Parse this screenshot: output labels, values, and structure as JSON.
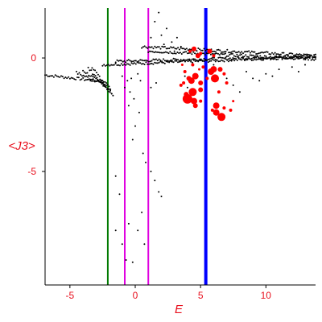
{
  "chart_data": {
    "type": "scatter",
    "xlabel": "E",
    "ylabel": "<J3>",
    "xlim": [
      -6.9,
      13.8
    ],
    "ylim": [
      -10,
      2.2
    ],
    "x_ticks": [
      -5,
      0,
      5,
      10
    ],
    "y_ticks": [
      0,
      -5
    ],
    "grid": false,
    "legend": "none",
    "vertical_lines": [
      {
        "x": -2.1,
        "color": "#007a00"
      },
      {
        "x": -0.8,
        "color": "#e000e0"
      },
      {
        "x": 1.0,
        "color": "#e000e0"
      },
      {
        "x": 5.4,
        "color": "#0000ff"
      }
    ],
    "series": [
      {
        "color": "#000000",
        "marker": "dot",
        "bands": [
          {
            "x0": -6.9,
            "x1": -2.2,
            "y0": -0.75,
            "y1": -1.05
          },
          {
            "x0": -4.5,
            "x1": -2.0,
            "y0": -0.65,
            "y1": -1.25
          },
          {
            "x0": -4.0,
            "x1": -1.9,
            "y0": -0.55,
            "y1": -1.4
          },
          {
            "x0": -3.6,
            "x1": -1.8,
            "y0": -0.45,
            "y1": -1.55
          },
          {
            "x0": -3.3,
            "x1": -1.7,
            "y0": -0.38,
            "y1": -1.7
          },
          {
            "x0": -2.5,
            "x1": 13.8,
            "y0": -0.3,
            "y1": 0.05
          },
          {
            "x0": -1.5,
            "x1": 13.8,
            "y0": -0.15,
            "y1": 0.08
          },
          {
            "x0": 0.5,
            "x1": 13.8,
            "y0": 0.5,
            "y1": 0.1
          },
          {
            "x0": 1.0,
            "x1": 13.8,
            "y0": 0.3,
            "y1": -0.05
          }
        ],
        "scattered": [
          [
            -1.0,
            -0.8
          ],
          [
            -0.6,
            -1.0
          ],
          [
            -0.3,
            -0.9
          ],
          [
            -0.8,
            -1.3
          ],
          [
            -0.4,
            -1.5
          ],
          [
            0.2,
            -0.7
          ],
          [
            0.4,
            -1.0
          ],
          [
            -0.1,
            -1.8
          ],
          [
            -0.5,
            -2.1
          ],
          [
            0.3,
            -2.4
          ],
          [
            0.0,
            -3.0
          ],
          [
            -0.2,
            -3.6
          ],
          [
            0.6,
            -4.2
          ],
          [
            0.8,
            -4.6
          ],
          [
            1.2,
            -5.0
          ],
          [
            1.5,
            -5.4
          ],
          [
            1.8,
            -5.9
          ],
          [
            2.0,
            -6.1
          ],
          [
            0.5,
            -6.8
          ],
          [
            -0.5,
            -7.3
          ],
          [
            0.2,
            -7.6
          ],
          [
            0.7,
            -8.2
          ],
          [
            -1.5,
            -5.2
          ],
          [
            -1.2,
            -6.0
          ],
          [
            -1.5,
            -7.6
          ],
          [
            -1.0,
            -8.2
          ],
          [
            -0.7,
            -8.9
          ],
          [
            -0.2,
            -9.0
          ],
          [
            1.2,
            -1.3
          ],
          [
            1.6,
            -1.1
          ],
          [
            2.0,
            1.0
          ],
          [
            2.4,
            1.3
          ],
          [
            1.5,
            1.6
          ],
          [
            1.8,
            2.0
          ],
          [
            2.8,
            0.7
          ],
          [
            3.2,
            0.9
          ],
          [
            3.5,
            0.5
          ],
          [
            3.0,
            0.3
          ],
          [
            2.2,
            0.6
          ],
          [
            1.2,
            0.9
          ],
          [
            8.5,
            -0.6
          ],
          [
            9.0,
            -0.9
          ],
          [
            10.0,
            -0.7
          ],
          [
            11.0,
            -0.5
          ],
          [
            12.0,
            -0.4
          ],
          [
            7.5,
            -1.2
          ],
          [
            8.0,
            -1.5
          ],
          [
            9.5,
            -1.0
          ],
          [
            10.5,
            -0.8
          ],
          [
            12.5,
            -0.6
          ],
          [
            13.0,
            -0.3
          ],
          [
            4.0,
            -1.3
          ],
          [
            3.8,
            -0.8
          ],
          [
            6.0,
            -0.3
          ],
          [
            7.0,
            -0.9
          ]
        ]
      },
      {
        "color": "#ff0000",
        "marker": "filled-circle",
        "points": [
          [
            4.2,
            0.3,
            2
          ],
          [
            4.5,
            0.4,
            3
          ],
          [
            4.8,
            0.1,
            3
          ],
          [
            5.0,
            0.2,
            2
          ],
          [
            5.7,
            0.3,
            3
          ],
          [
            6.0,
            0.1,
            2
          ],
          [
            4.4,
            -0.3,
            2
          ],
          [
            5.2,
            -0.4,
            2
          ],
          [
            3.8,
            -0.6,
            2
          ],
          [
            4.1,
            -0.9,
            3
          ],
          [
            4.3,
            -1.0,
            4
          ],
          [
            4.6,
            -0.8,
            4
          ],
          [
            5.0,
            -1.1,
            3
          ],
          [
            5.5,
            -0.9,
            2
          ],
          [
            5.8,
            -0.6,
            4
          ],
          [
            6.0,
            -0.5,
            4
          ],
          [
            6.1,
            -0.9,
            5
          ],
          [
            6.5,
            -0.5,
            3
          ],
          [
            6.8,
            -0.7,
            2
          ],
          [
            3.7,
            -1.1,
            2
          ],
          [
            3.5,
            -1.2,
            2
          ],
          [
            3.9,
            -1.6,
            3
          ],
          [
            4.4,
            -1.5,
            5
          ],
          [
            4.0,
            -1.8,
            6
          ],
          [
            4.5,
            -1.9,
            4
          ],
          [
            5.0,
            -1.9,
            2
          ],
          [
            4.6,
            -2.1,
            3
          ],
          [
            5.0,
            -1.4,
            3
          ],
          [
            6.4,
            -1.5,
            2
          ],
          [
            6.2,
            -2.1,
            4
          ],
          [
            6.8,
            -2.2,
            2
          ],
          [
            6.6,
            -2.6,
            5
          ],
          [
            6.2,
            -2.4,
            4
          ],
          [
            5.9,
            -2.3,
            2
          ],
          [
            7.3,
            -2.3,
            2
          ],
          [
            7.0,
            -1.1,
            2
          ],
          [
            7.5,
            -1.9,
            1.5
          ],
          [
            3.6,
            -0.3,
            1.5
          ],
          [
            4.9,
            -0.5,
            1.5
          ]
        ]
      }
    ]
  }
}
